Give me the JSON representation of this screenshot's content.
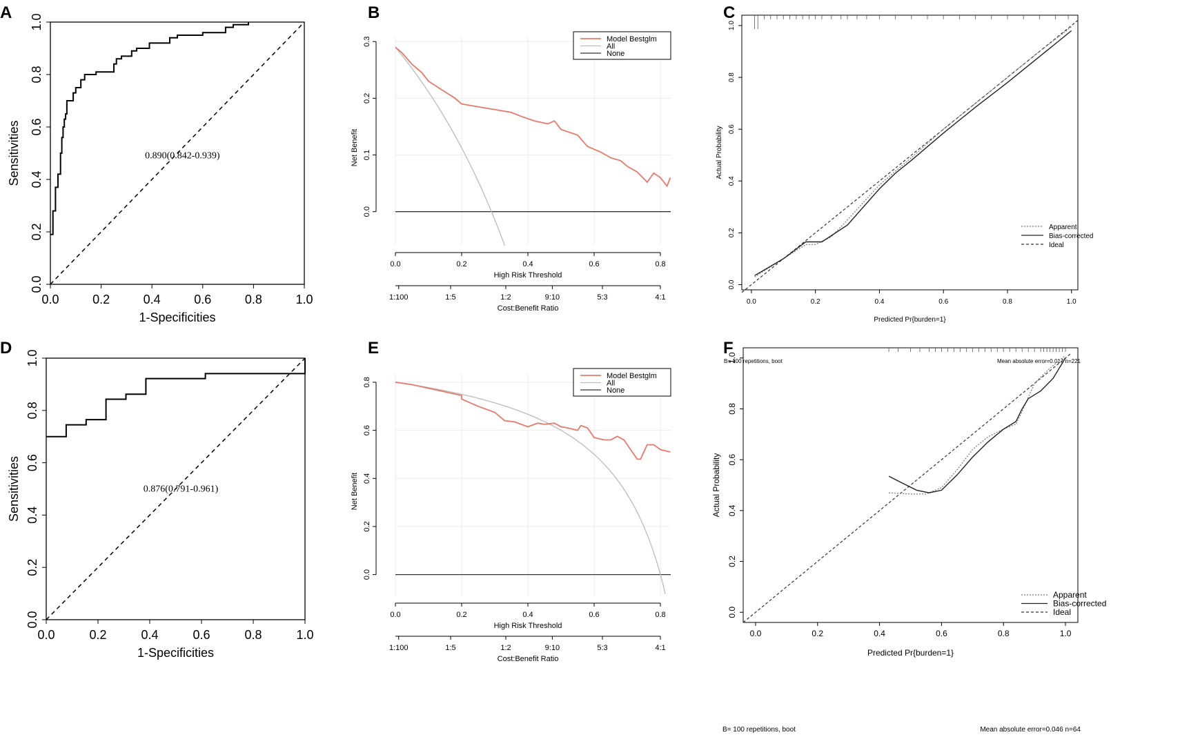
{
  "colors": {
    "model": "#e8786a",
    "all": "#bbbbbb",
    "none": "#333333",
    "axis": "#000000",
    "grid": "#ececec"
  },
  "chart_data": [
    {
      "panel": "A",
      "type": "line",
      "subtype": "roc",
      "xlabel": "1-Specificities",
      "ylabel": "Sensitivities",
      "xlim": [
        0,
        1
      ],
      "ylim": [
        0,
        1
      ],
      "xticks": [
        "0.0",
        "0.2",
        "0.4",
        "0.6",
        "0.8",
        "1.0"
      ],
      "yticks": [
        "0.0",
        "0.2",
        "0.4",
        "0.6",
        "0.8",
        "1.0"
      ],
      "annotation": "0.890(0.842-0.939)",
      "roc": [
        [
          0,
          0.19
        ],
        [
          0.01,
          0.19
        ],
        [
          0.01,
          0.28
        ],
        [
          0.02,
          0.28
        ],
        [
          0.02,
          0.37
        ],
        [
          0.03,
          0.37
        ],
        [
          0.03,
          0.42
        ],
        [
          0.04,
          0.42
        ],
        [
          0.04,
          0.5
        ],
        [
          0.045,
          0.5
        ],
        [
          0.045,
          0.56
        ],
        [
          0.05,
          0.56
        ],
        [
          0.05,
          0.6
        ],
        [
          0.055,
          0.6
        ],
        [
          0.055,
          0.63
        ],
        [
          0.06,
          0.63
        ],
        [
          0.06,
          0.65
        ],
        [
          0.065,
          0.65
        ],
        [
          0.065,
          0.7
        ],
        [
          0.09,
          0.7
        ],
        [
          0.09,
          0.73
        ],
        [
          0.1,
          0.73
        ],
        [
          0.1,
          0.75
        ],
        [
          0.12,
          0.75
        ],
        [
          0.12,
          0.78
        ],
        [
          0.135,
          0.78
        ],
        [
          0.135,
          0.8
        ],
        [
          0.18,
          0.8
        ],
        [
          0.18,
          0.81
        ],
        [
          0.25,
          0.81
        ],
        [
          0.25,
          0.84
        ],
        [
          0.26,
          0.84
        ],
        [
          0.26,
          0.86
        ],
        [
          0.28,
          0.86
        ],
        [
          0.28,
          0.87
        ],
        [
          0.32,
          0.87
        ],
        [
          0.32,
          0.89
        ],
        [
          0.34,
          0.89
        ],
        [
          0.34,
          0.9
        ],
        [
          0.39,
          0.9
        ],
        [
          0.39,
          0.92
        ],
        [
          0.47,
          0.92
        ],
        [
          0.47,
          0.94
        ],
        [
          0.5,
          0.94
        ],
        [
          0.5,
          0.95
        ],
        [
          0.6,
          0.95
        ],
        [
          0.6,
          0.96
        ],
        [
          0.69,
          0.96
        ],
        [
          0.69,
          0.98
        ],
        [
          0.72,
          0.98
        ],
        [
          0.72,
          0.99
        ],
        [
          0.78,
          0.99
        ],
        [
          0.78,
          1.0
        ]
      ]
    },
    {
      "panel": "B",
      "type": "line",
      "subtype": "decision-curve",
      "xlabel": "High Risk Threshold",
      "ylabel": "Net Benefit",
      "x2label": "Cost:Benefit Ratio",
      "xlim": [
        0,
        0.83
      ],
      "ylim": [
        -0.06,
        0.31
      ],
      "xticks": [
        "0.0",
        "0.2",
        "0.4",
        "0.6",
        "0.8"
      ],
      "yticks": [
        "0.0",
        "0.1",
        "0.2",
        "0.3"
      ],
      "x2ticks": [
        "1:100",
        "1:5",
        "1:2",
        "9:10",
        "5:3",
        "4:1"
      ],
      "legend": [
        "Model Bestglm",
        "All",
        "None"
      ],
      "prevalence": 0.29,
      "model": [
        [
          0,
          0.29
        ],
        [
          0.02,
          0.28
        ],
        [
          0.05,
          0.26
        ],
        [
          0.08,
          0.245
        ],
        [
          0.1,
          0.23
        ],
        [
          0.14,
          0.215
        ],
        [
          0.18,
          0.2
        ],
        [
          0.2,
          0.19
        ],
        [
          0.25,
          0.185
        ],
        [
          0.3,
          0.18
        ],
        [
          0.35,
          0.175
        ],
        [
          0.38,
          0.168
        ],
        [
          0.42,
          0.16
        ],
        [
          0.46,
          0.155
        ],
        [
          0.48,
          0.16
        ],
        [
          0.5,
          0.145
        ],
        [
          0.55,
          0.135
        ],
        [
          0.58,
          0.115
        ],
        [
          0.62,
          0.105
        ],
        [
          0.65,
          0.095
        ],
        [
          0.68,
          0.09
        ],
        [
          0.7,
          0.08
        ],
        [
          0.73,
          0.07
        ],
        [
          0.75,
          0.058
        ],
        [
          0.76,
          0.052
        ],
        [
          0.78,
          0.068
        ],
        [
          0.8,
          0.06
        ],
        [
          0.82,
          0.045
        ],
        [
          0.83,
          0.06
        ]
      ]
    },
    {
      "panel": "C",
      "type": "line",
      "subtype": "calibration",
      "xlabel": "Predicted Pr{burden=1}",
      "ylabel": "Actual Probability",
      "xlim": [
        -0.03,
        1.02
      ],
      "ylim": [
        -0.02,
        1.04
      ],
      "xticks": [
        "0.0",
        "0.2",
        "0.4",
        "0.6",
        "0.8",
        "1.0"
      ],
      "yticks": [
        "0.0",
        "0.2",
        "0.4",
        "0.6",
        "0.8",
        "1.0"
      ],
      "legend": [
        "Apparent",
        "Bias-corrected",
        "Ideal"
      ],
      "footnote_left": "B= 100 repetitions, boot",
      "footnote_right": "Mean absolute error=0.017 n=221",
      "apparent": [
        [
          0.01,
          0.03
        ],
        [
          0.1,
          0.1
        ],
        [
          0.17,
          0.155
        ],
        [
          0.2,
          0.155
        ],
        [
          0.25,
          0.185
        ],
        [
          0.3,
          0.25
        ],
        [
          0.4,
          0.385
        ],
        [
          0.5,
          0.49
        ],
        [
          0.6,
          0.6
        ],
        [
          0.7,
          0.7
        ],
        [
          0.8,
          0.8
        ],
        [
          0.9,
          0.9
        ],
        [
          1.0,
          0.995
        ]
      ],
      "bias_corrected": [
        [
          0.01,
          0.035
        ],
        [
          0.1,
          0.1
        ],
        [
          0.17,
          0.165
        ],
        [
          0.22,
          0.165
        ],
        [
          0.3,
          0.23
        ],
        [
          0.4,
          0.37
        ],
        [
          0.45,
          0.43
        ],
        [
          0.5,
          0.48
        ],
        [
          0.6,
          0.585
        ],
        [
          0.7,
          0.685
        ],
        [
          0.8,
          0.78
        ],
        [
          0.9,
          0.88
        ],
        [
          1.0,
          0.98
        ]
      ],
      "rug": [
        0.01,
        0.02,
        0.04,
        0.06,
        0.08,
        0.1,
        0.12,
        0.14,
        0.16,
        0.18,
        0.2,
        0.22,
        0.25,
        0.28,
        0.3,
        0.33,
        0.36,
        0.4,
        0.45,
        0.5,
        0.55,
        0.6,
        0.65,
        0.7,
        0.75,
        0.8,
        0.85,
        0.9,
        0.95,
        0.99
      ]
    },
    {
      "panel": "D",
      "type": "line",
      "subtype": "roc",
      "xlabel": "1-Specificities",
      "ylabel": "Sensitivities",
      "xlim": [
        0,
        1
      ],
      "ylim": [
        0,
        1
      ],
      "xticks": [
        "0.0",
        "0.2",
        "0.4",
        "0.6",
        "0.8",
        "1.0"
      ],
      "yticks": [
        "0.0",
        "0.2",
        "0.4",
        "0.6",
        "0.8",
        "1.0"
      ],
      "annotation": "0.876(0.791-0.961)",
      "roc": [
        [
          0,
          0.7
        ],
        [
          0.077,
          0.7
        ],
        [
          0.077,
          0.745
        ],
        [
          0.154,
          0.745
        ],
        [
          0.154,
          0.765
        ],
        [
          0.231,
          0.765
        ],
        [
          0.231,
          0.843
        ],
        [
          0.308,
          0.843
        ],
        [
          0.308,
          0.862
        ],
        [
          0.385,
          0.862
        ],
        [
          0.385,
          0.922
        ],
        [
          0.615,
          0.922
        ],
        [
          0.615,
          0.941
        ],
        [
          1.0,
          0.941
        ],
        [
          1.0,
          1.0
        ]
      ]
    },
    {
      "panel": "E",
      "type": "line",
      "subtype": "decision-curve",
      "xlabel": "High Risk Threshold",
      "ylabel": "Net Benefit",
      "x2label": "Cost:Benefit Ratio",
      "xlim": [
        0,
        0.83
      ],
      "ylim": [
        -0.09,
        0.84
      ],
      "xticks": [
        "0.0",
        "0.2",
        "0.4",
        "0.6",
        "0.8"
      ],
      "yticks": [
        "0.0",
        "0.2",
        "0.4",
        "0.6",
        "0.8"
      ],
      "x2ticks": [
        "1:100",
        "1:5",
        "1:2",
        "9:10",
        "5:3",
        "4:1"
      ],
      "legend": [
        "Model Bestglm",
        "All",
        "None"
      ],
      "prevalence": 0.8,
      "model": [
        [
          0,
          0.8
        ],
        [
          0.05,
          0.79
        ],
        [
          0.1,
          0.775
        ],
        [
          0.15,
          0.76
        ],
        [
          0.2,
          0.745
        ],
        [
          0.2,
          0.73
        ],
        [
          0.25,
          0.7
        ],
        [
          0.3,
          0.675
        ],
        [
          0.33,
          0.64
        ],
        [
          0.36,
          0.635
        ],
        [
          0.4,
          0.615
        ],
        [
          0.43,
          0.63
        ],
        [
          0.45,
          0.625
        ],
        [
          0.48,
          0.63
        ],
        [
          0.5,
          0.615
        ],
        [
          0.52,
          0.61
        ],
        [
          0.55,
          0.6
        ],
        [
          0.56,
          0.62
        ],
        [
          0.58,
          0.61
        ],
        [
          0.6,
          0.57
        ],
        [
          0.63,
          0.56
        ],
        [
          0.65,
          0.56
        ],
        [
          0.67,
          0.575
        ],
        [
          0.69,
          0.56
        ],
        [
          0.71,
          0.52
        ],
        [
          0.73,
          0.48
        ],
        [
          0.74,
          0.48
        ],
        [
          0.76,
          0.54
        ],
        [
          0.78,
          0.54
        ],
        [
          0.8,
          0.52
        ],
        [
          0.83,
          0.51
        ]
      ]
    },
    {
      "panel": "F",
      "type": "line",
      "subtype": "calibration",
      "xlabel": "Predicted Pr{burden=1}",
      "ylabel": "Actual Probability",
      "xlim": [
        -0.04,
        1.04
      ],
      "ylim": [
        -0.04,
        1.04
      ],
      "xticks": [
        "0.0",
        "0.2",
        "0.4",
        "0.6",
        "0.8",
        "1.0"
      ],
      "yticks": [
        "0.0",
        "0.2",
        "0.4",
        "0.6",
        "0.8",
        "1.0"
      ],
      "legend": [
        "Apparent",
        "Bias-corrected",
        "Ideal"
      ],
      "footnote_left": "B= 100 repetitions, boot",
      "footnote_right": "Mean absolute error=0.046 n=64",
      "apparent": [
        [
          0.43,
          0.47
        ],
        [
          0.5,
          0.465
        ],
        [
          0.55,
          0.465
        ],
        [
          0.6,
          0.49
        ],
        [
          0.65,
          0.56
        ],
        [
          0.7,
          0.64
        ],
        [
          0.75,
          0.69
        ],
        [
          0.8,
          0.72
        ],
        [
          0.84,
          0.74
        ],
        [
          0.86,
          0.79
        ],
        [
          0.9,
          0.9
        ],
        [
          0.95,
          0.96
        ],
        [
          1.0,
          1.01
        ]
      ],
      "bias_corrected": [
        [
          0.43,
          0.535
        ],
        [
          0.47,
          0.51
        ],
        [
          0.52,
          0.48
        ],
        [
          0.56,
          0.47
        ],
        [
          0.6,
          0.48
        ],
        [
          0.65,
          0.54
        ],
        [
          0.7,
          0.61
        ],
        [
          0.75,
          0.67
        ],
        [
          0.8,
          0.72
        ],
        [
          0.84,
          0.75
        ],
        [
          0.86,
          0.8
        ],
        [
          0.88,
          0.84
        ],
        [
          0.92,
          0.87
        ],
        [
          0.96,
          0.92
        ],
        [
          1.0,
          1.0
        ]
      ],
      "rug": [
        0.43,
        0.46,
        0.5,
        0.53,
        0.56,
        0.58,
        0.6,
        0.62,
        0.64,
        0.66,
        0.68,
        0.7,
        0.72,
        0.74,
        0.76,
        0.78,
        0.8,
        0.82,
        0.84,
        0.86,
        0.88,
        0.9,
        0.92,
        0.93,
        0.94,
        0.95,
        0.96,
        0.97,
        0.98,
        0.99,
        1.0
      ]
    }
  ]
}
